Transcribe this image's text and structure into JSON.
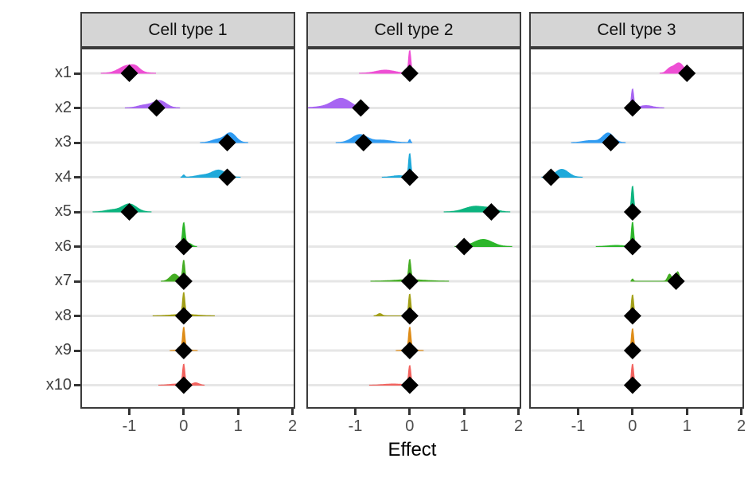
{
  "chart_data": {
    "type": "ridgeline",
    "xlabel": "Effect",
    "x_ticks": [
      -1,
      0,
      1,
      2
    ],
    "x_range": [
      -1.9,
      2.05
    ],
    "y_labels": [
      "x1",
      "x2",
      "x3",
      "x4",
      "x5",
      "x6",
      "x7",
      "x8",
      "x9",
      "x10"
    ],
    "grid": "horizontal-only",
    "legend": "none",
    "point_marker": "black-diamond",
    "facets": [
      {
        "label": "Cell type 1",
        "rows": [
          {
            "var": "x1",
            "color": "#ee4fd4",
            "diamond": -1.0,
            "bumps": [
              [
                -1.02,
                0.16,
                10
              ],
              [
                -0.88,
                0.07,
                3
              ]
            ]
          },
          {
            "var": "x2",
            "color": "#a765f2",
            "diamond": -0.5,
            "bumps": [
              [
                -0.44,
                0.12,
                9
              ],
              [
                -0.72,
                0.13,
                3.5
              ]
            ]
          },
          {
            "var": "x3",
            "color": "#2e9bf2",
            "diamond": 0.8,
            "bumps": [
              [
                0.86,
                0.1,
                12
              ],
              [
                0.62,
                0.11,
                4
              ]
            ]
          },
          {
            "var": "x4",
            "color": "#1fa9da",
            "diamond": 0.8,
            "bumps": [
              [
                0.64,
                0.13,
                9
              ],
              [
                0.33,
                0.12,
                2.5
              ],
              [
                0.0,
                0.02,
                3
              ]
            ]
          },
          {
            "var": "x5",
            "color": "#0cb47f",
            "diamond": -1.0,
            "bumps": [
              [
                -1.0,
                0.13,
                10
              ],
              [
                -1.32,
                0.13,
                2.5
              ]
            ]
          },
          {
            "var": "x6",
            "color": "#2db62b",
            "diamond": 0.0,
            "bumps": [
              [
                0.0,
                0.025,
                30
              ],
              [
                0.1,
                0.05,
                4
              ]
            ]
          },
          {
            "var": "x7",
            "color": "#45ad24",
            "diamond": 0.0,
            "bumps": [
              [
                0.0,
                0.022,
                26
              ],
              [
                -0.17,
                0.08,
                9
              ]
            ]
          },
          {
            "var": "x8",
            "color": "#a3a018",
            "diamond": 0.0,
            "bumps": [
              [
                0.0,
                0.022,
                28
              ],
              [
                0.0,
                0.22,
                2
              ]
            ]
          },
          {
            "var": "x9",
            "color": "#de8c18",
            "diamond": 0.0,
            "bumps": [
              [
                0.0,
                0.022,
                28
              ],
              [
                0.0,
                0.1,
                2
              ]
            ]
          },
          {
            "var": "x10",
            "color": "#f2635f",
            "diamond": 0.0,
            "bumps": [
              [
                0.0,
                0.022,
                26
              ],
              [
                0.22,
                0.06,
                3
              ],
              [
                -0.12,
                0.14,
                1.5
              ]
            ]
          }
        ]
      },
      {
        "label": "Cell type 2",
        "rows": [
          {
            "var": "x1",
            "color": "#ee4fd4",
            "diamond": 0.0,
            "bumps": [
              [
                0.0,
                0.022,
                29
              ],
              [
                -0.45,
                0.17,
                4
              ]
            ]
          },
          {
            "var": "x2",
            "color": "#a765f2",
            "diamond": -0.9,
            "bumps": [
              [
                -1.25,
                0.16,
                11
              ],
              [
                -1.5,
                0.22,
                2
              ]
            ]
          },
          {
            "var": "x3",
            "color": "#2e9bf2",
            "diamond": -0.85,
            "bumps": [
              [
                -0.92,
                0.14,
                10
              ],
              [
                -0.5,
                0.17,
                3
              ],
              [
                0.0,
                0.015,
                4
              ]
            ]
          },
          {
            "var": "x4",
            "color": "#1fa9da",
            "diamond": 0.0,
            "bumps": [
              [
                0.0,
                0.022,
                30
              ],
              [
                -0.2,
                0.12,
                2
              ]
            ]
          },
          {
            "var": "x5",
            "color": "#0cb47f",
            "diamond": 1.5,
            "bumps": [
              [
                1.2,
                0.19,
                7
              ],
              [
                1.5,
                0.12,
                3
              ]
            ]
          },
          {
            "var": "x6",
            "color": "#2db62b",
            "diamond": 1.0,
            "bumps": [
              [
                1.35,
                0.17,
                9
              ]
            ]
          },
          {
            "var": "x7",
            "color": "#45ad24",
            "diamond": 0.0,
            "bumps": [
              [
                0.0,
                0.022,
                26
              ],
              [
                0.0,
                0.28,
                2
              ]
            ]
          },
          {
            "var": "x8",
            "color": "#a3a018",
            "diamond": 0.0,
            "bumps": [
              [
                0.0,
                0.022,
                28
              ],
              [
                -0.55,
                0.04,
                3
              ]
            ]
          },
          {
            "var": "x9",
            "color": "#de8c18",
            "diamond": 0.0,
            "bumps": [
              [
                0.0,
                0.022,
                28
              ],
              [
                0.0,
                0.1,
                2
              ]
            ]
          },
          {
            "var": "x10",
            "color": "#f2635f",
            "diamond": 0.0,
            "bumps": [
              [
                0.0,
                0.022,
                25
              ],
              [
                -0.3,
                0.18,
                1.5
              ]
            ]
          }
        ]
      },
      {
        "label": "Cell type 3",
        "rows": [
          {
            "var": "x1",
            "color": "#ee4fd4",
            "diamond": 1.0,
            "bumps": [
              [
                0.85,
                0.09,
                13
              ],
              [
                0.68,
                0.06,
                5
              ]
            ]
          },
          {
            "var": "x2",
            "color": "#a765f2",
            "diamond": 0.0,
            "bumps": [
              [
                0.0,
                0.022,
                24
              ],
              [
                0.25,
                0.12,
                3
              ]
            ]
          },
          {
            "var": "x3",
            "color": "#2e9bf2",
            "diamond": -0.4,
            "bumps": [
              [
                -0.45,
                0.1,
                12
              ],
              [
                -0.78,
                0.13,
                2.5
              ]
            ]
          },
          {
            "var": "x4",
            "color": "#1fa9da",
            "diamond": -1.5,
            "bumps": [
              [
                -1.3,
                0.12,
                10
              ]
            ]
          },
          {
            "var": "x5",
            "color": "#0cb47f",
            "diamond": 0.0,
            "bumps": [
              [
                0.0,
                0.022,
                33
              ]
            ]
          },
          {
            "var": "x6",
            "color": "#2db62b",
            "diamond": 0.0,
            "bumps": [
              [
                0.0,
                0.022,
                31
              ],
              [
                -0.3,
                0.15,
                1.5
              ]
            ]
          },
          {
            "var": "x7",
            "color": "#45ad24",
            "diamond": 0.8,
            "bumps": [
              [
                0.83,
                0.03,
                12
              ],
              [
                0.68,
                0.035,
                9
              ],
              [
                0.0,
                0.015,
                3
              ]
            ]
          },
          {
            "var": "x8",
            "color": "#a3a018",
            "diamond": 0.0,
            "bumps": [
              [
                0.0,
                0.022,
                27
              ]
            ]
          },
          {
            "var": "x9",
            "color": "#de8c18",
            "diamond": 0.0,
            "bumps": [
              [
                0.0,
                0.022,
                28
              ]
            ]
          },
          {
            "var": "x10",
            "color": "#f2635f",
            "diamond": 0.0,
            "bumps": [
              [
                0.0,
                0.022,
                27
              ]
            ]
          }
        ]
      }
    ],
    "style": {
      "strip_bg": "#d5d5d5",
      "panel_border": "#3b3b3b",
      "gridline": "#e6e6e6",
      "tick_color": "#333333",
      "tick_label_color": "#4d4d4d",
      "diamond_color": "#000000"
    }
  }
}
